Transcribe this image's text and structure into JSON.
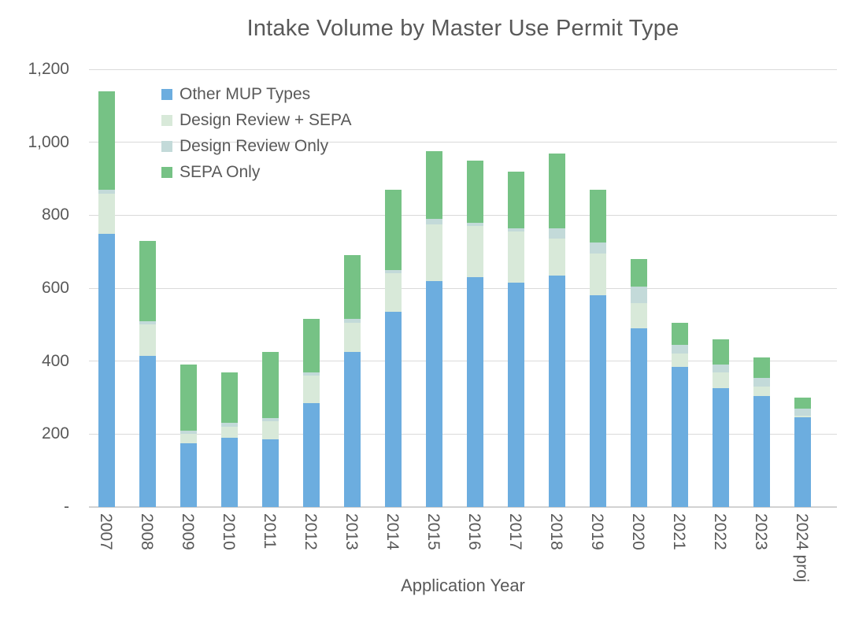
{
  "chart_data": {
    "type": "bar",
    "stacked": true,
    "title": "Intake Volume by Master Use Permit Type",
    "xlabel": "Application Year",
    "ylabel": "",
    "categories": [
      "2007",
      "2008",
      "2009",
      "2010",
      "2011",
      "2012",
      "2013",
      "2014",
      "2015",
      "2016",
      "2017",
      "2018",
      "2019",
      "2020",
      "2021",
      "2022",
      "2023",
      "2024 proj"
    ],
    "series": [
      {
        "name": "Other MUP Types",
        "color": "#6CADDF",
        "values": [
          750,
          415,
          175,
          190,
          185,
          285,
          425,
          535,
          620,
          630,
          615,
          635,
          580,
          490,
          385,
          325,
          305,
          245
        ]
      },
      {
        "name": "Design Review + SEPA",
        "color": "#D8E9D9",
        "values": [
          110,
          85,
          25,
          30,
          50,
          75,
          80,
          105,
          155,
          140,
          140,
          100,
          115,
          70,
          35,
          45,
          25,
          5
        ]
      },
      {
        "name": "Design Review Only",
        "color": "#C3DAD9",
        "values": [
          10,
          10,
          10,
          10,
          10,
          10,
          10,
          10,
          15,
          10,
          10,
          30,
          30,
          45,
          25,
          20,
          25,
          20
        ]
      },
      {
        "name": "SEPA Only",
        "color": "#76C285",
        "values": [
          270,
          220,
          180,
          140,
          180,
          145,
          175,
          220,
          185,
          170,
          155,
          205,
          145,
          75,
          60,
          70,
          55,
          30
        ]
      }
    ],
    "totals": [
      1140,
      730,
      390,
      370,
      425,
      515,
      690,
      870,
      975,
      950,
      920,
      970,
      870,
      680,
      505,
      460,
      410,
      300
    ],
    "ylim": [
      0,
      1200
    ],
    "ytick_interval": 200,
    "ytick_labels": [
      "-",
      "200",
      "400",
      "600",
      "800",
      "1,000",
      "1,200"
    ],
    "grid": true,
    "legend_position": "top-left-inside",
    "colors": {
      "text": "#595959",
      "gridline": "#dadada",
      "axis_line": "#d2d2d2",
      "background": "#ffffff"
    }
  }
}
